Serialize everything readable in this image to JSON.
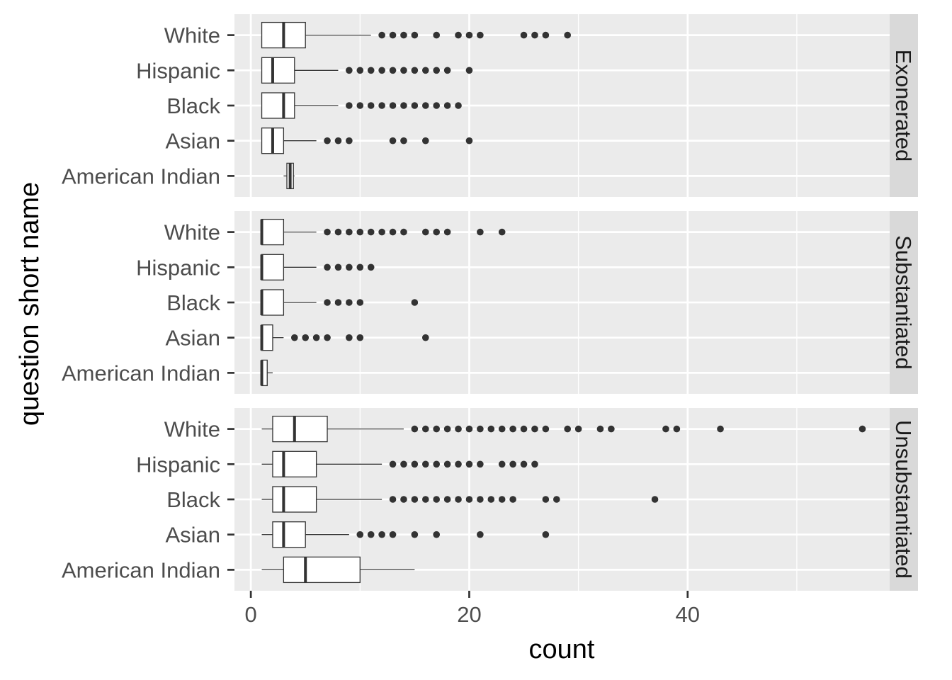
{
  "chart_data": {
    "type": "boxplot",
    "orientation": "horizontal",
    "xlabel": "count",
    "ylabel": "question short name",
    "xlim": [
      -1.5,
      58.5
    ],
    "x_ticks": [
      0,
      20,
      40
    ],
    "x_tick_labels": [
      "0",
      "20",
      "40"
    ],
    "x_minor_ticks": [
      10,
      30,
      50
    ],
    "categories": [
      "White",
      "Hispanic",
      "Black",
      "Asian",
      "American Indian"
    ],
    "grid": true,
    "legend": "none",
    "colors": {
      "panel_bg": "#ebebeb",
      "grid": "#ffffff",
      "strip_bg": "#d9d9d9",
      "box_fill": "#ffffff",
      "line": "#333333",
      "text": "#4d4d4d",
      "title": "#000000"
    },
    "facets": [
      {
        "strip": "Exonerated",
        "groups": [
          {
            "category": "White",
            "min": 1,
            "q1": 1,
            "median": 3,
            "q3": 5,
            "max": 11,
            "outliers": [
              12,
              13,
              14,
              15,
              17,
              19,
              20,
              21,
              25,
              26,
              27,
              29
            ]
          },
          {
            "category": "Hispanic",
            "min": 1,
            "q1": 1,
            "median": 2,
            "q3": 4,
            "max": 8,
            "outliers": [
              9,
              10,
              11,
              12,
              13,
              14,
              15,
              16,
              17,
              18,
              20
            ]
          },
          {
            "category": "Black",
            "min": 1,
            "q1": 1,
            "median": 3,
            "q3": 4,
            "max": 8,
            "outliers": [
              9,
              10,
              11,
              12,
              13,
              14,
              15,
              16,
              17,
              18,
              19
            ]
          },
          {
            "category": "Asian",
            "min": 1,
            "q1": 1,
            "median": 2,
            "q3": 3,
            "max": 6,
            "outliers": [
              7,
              8,
              9,
              13,
              14,
              16,
              20
            ]
          },
          {
            "category": "American Indian",
            "min": 3,
            "q1": 3.3,
            "median": 3.6,
            "q3": 3.9,
            "max": 4,
            "outliers": []
          }
        ]
      },
      {
        "strip": "Substantiated",
        "groups": [
          {
            "category": "White",
            "min": 1,
            "q1": 1,
            "median": 1,
            "q3": 3,
            "max": 6,
            "outliers": [
              7,
              8,
              9,
              10,
              11,
              12,
              13,
              14,
              16,
              17,
              18,
              21,
              23
            ]
          },
          {
            "category": "Hispanic",
            "min": 1,
            "q1": 1,
            "median": 1,
            "q3": 3,
            "max": 6,
            "outliers": [
              7,
              8,
              9,
              10,
              11
            ]
          },
          {
            "category": "Black",
            "min": 1,
            "q1": 1,
            "median": 1,
            "q3": 3,
            "max": 6,
            "outliers": [
              7,
              8,
              9,
              10,
              15
            ]
          },
          {
            "category": "Asian",
            "min": 1,
            "q1": 1,
            "median": 1,
            "q3": 2,
            "max": 3,
            "outliers": [
              4,
              5,
              6,
              7,
              9,
              10,
              16
            ]
          },
          {
            "category": "American Indian",
            "min": 1,
            "q1": 1,
            "median": 1,
            "q3": 1.5,
            "max": 2,
            "outliers": []
          }
        ]
      },
      {
        "strip": "Unsubstantiated",
        "groups": [
          {
            "category": "White",
            "min": 1,
            "q1": 2,
            "median": 4,
            "q3": 7,
            "max": 14,
            "outliers": [
              15,
              16,
              17,
              18,
              19,
              20,
              21,
              22,
              23,
              24,
              25,
              26,
              27,
              29,
              30,
              32,
              33,
              38,
              39,
              43,
              56
            ]
          },
          {
            "category": "Hispanic",
            "min": 1,
            "q1": 2,
            "median": 3,
            "q3": 6,
            "max": 12,
            "outliers": [
              13,
              14,
              15,
              16,
              17,
              18,
              19,
              20,
              21,
              23,
              24,
              25,
              26
            ]
          },
          {
            "category": "Black",
            "min": 1,
            "q1": 2,
            "median": 3,
            "q3": 6,
            "max": 12,
            "outliers": [
              13,
              14,
              15,
              16,
              17,
              18,
              19,
              20,
              21,
              22,
              23,
              24,
              27,
              28,
              37
            ]
          },
          {
            "category": "Asian",
            "min": 1,
            "q1": 2,
            "median": 3,
            "q3": 5,
            "max": 9,
            "outliers": [
              10,
              11,
              12,
              13,
              15,
              17,
              21,
              27
            ]
          },
          {
            "category": "American Indian",
            "min": 1,
            "q1": 3,
            "median": 5,
            "q3": 10,
            "max": 15,
            "outliers": []
          }
        ]
      }
    ]
  }
}
